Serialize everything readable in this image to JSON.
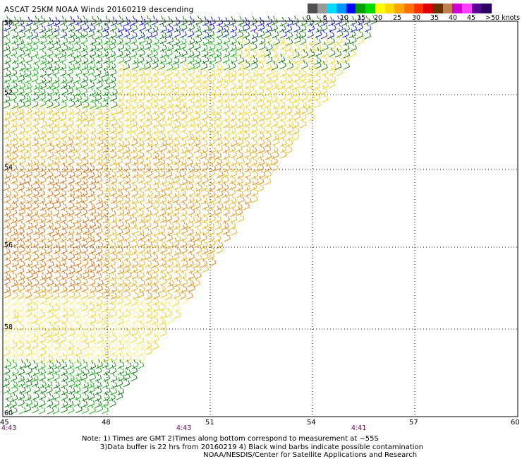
{
  "title": "ASCAT 25KM NOAA Winds 20160219 descending",
  "legend": {
    "labels": [
      "0",
      "5",
      "10",
      "15",
      "20",
      "25",
      "30",
      "35",
      "40",
      "45",
      ">50 knots"
    ],
    "colors": [
      "#505050",
      "#9a9a9a",
      "#00dcff",
      "#0096ff",
      "#0000ff",
      "#00a000",
      "#00dc00",
      "#ffff00",
      "#ffd700",
      "#ffa500",
      "#ff7000",
      "#ff3000",
      "#dc0000",
      "#6a3000",
      "#c08050",
      "#d000d0",
      "#ff40ff",
      "#5a0090",
      "#2a0060"
    ]
  },
  "map": {
    "lat_labels": [
      "50",
      "52",
      "54",
      "56",
      "58",
      "60"
    ],
    "lon_labels": [
      "45",
      "48",
      "51",
      "54",
      "57",
      "60"
    ],
    "time_labels": [
      "4:43",
      "4:43",
      "4:41"
    ],
    "wind_speed_colors": {
      "black": "#000000",
      "dark_green": "#007000",
      "green": "#00b000",
      "blue": "#0000e0",
      "pale_yellow": "#ffee66",
      "yellow": "#f5d000",
      "gold": "#e8b000",
      "orange": "#e08000",
      "dark_orange": "#d06000"
    }
  },
  "notes": [
    "Note: 1) Times are GMT 2)Times along bottom correspond to measurement at ~55S",
    "3)Data buffer is 22 hrs from 20160219 4) Black wind barbs indicate possible contamination",
    "NOAA/NESDIS/Center for Satellite Applications and Research"
  ]
}
